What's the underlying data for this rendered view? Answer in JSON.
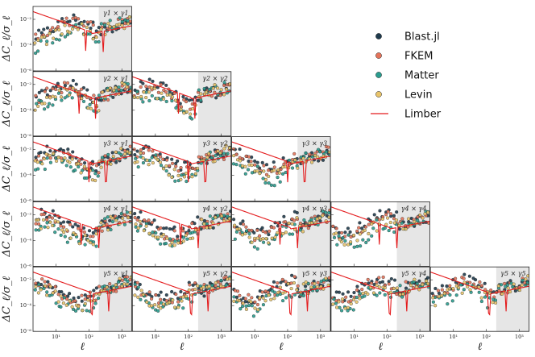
{
  "chart_data": {
    "type": "scatter",
    "grid_shape": [
      5,
      5
    ],
    "layout": "lower-triangular",
    "xlabel": "ℓ",
    "ylabel": "ΔC_ℓ/σ_ℓ",
    "xscale": "log",
    "yscale": "log",
    "xlim": [
      2,
      2000
    ],
    "ylim": [
      1e-06,
      0.1
    ],
    "x_ticks": [
      "10¹",
      "10²",
      "10³"
    ],
    "y_ticks": [
      "10⁻²",
      "10⁻⁴",
      "10⁻⁶"
    ],
    "shaded_region": {
      "x_from": 200,
      "x_to": 2000,
      "color": "#e6e6e6"
    },
    "legend": {
      "position": "upper-right",
      "entries": [
        {
          "label": "Blast.jl",
          "marker": "circle",
          "color": "#1f3b4d"
        },
        {
          "label": "FKEM",
          "marker": "circle",
          "color": "#e4735a"
        },
        {
          "label": "Matter",
          "marker": "circle",
          "color": "#2a9d8f"
        },
        {
          "label": "Levin",
          "marker": "circle",
          "color": "#e9c46a"
        },
        {
          "label": "Limber",
          "marker": "line",
          "color": "#e41a1c"
        }
      ]
    },
    "panels": [
      {
        "row": 1,
        "col": 1,
        "label": "γ1 × γ1"
      },
      {
        "row": 2,
        "col": 1,
        "label": "γ2 × γ1"
      },
      {
        "row": 2,
        "col": 2,
        "label": "γ2 × γ2"
      },
      {
        "row": 3,
        "col": 1,
        "label": "γ3 × γ1"
      },
      {
        "row": 3,
        "col": 2,
        "label": "γ3 × γ2"
      },
      {
        "row": 3,
        "col": 3,
        "label": "γ3 × γ3"
      },
      {
        "row": 4,
        "col": 1,
        "label": "γ4 × γ1"
      },
      {
        "row": 4,
        "col": 2,
        "label": "γ4 × γ2"
      },
      {
        "row": 4,
        "col": 3,
        "label": "γ4 × γ3"
      },
      {
        "row": 4,
        "col": 4,
        "label": "γ4 × γ4"
      },
      {
        "row": 5,
        "col": 1,
        "label": "γ5 × γ1"
      },
      {
        "row": 5,
        "col": 2,
        "label": "γ5 × γ2"
      },
      {
        "row": 5,
        "col": 3,
        "label": "γ5 × γ3"
      },
      {
        "row": 5,
        "col": 4,
        "label": "γ5 × γ4"
      },
      {
        "row": 5,
        "col": 5,
        "label": "γ5 × γ5"
      }
    ]
  }
}
